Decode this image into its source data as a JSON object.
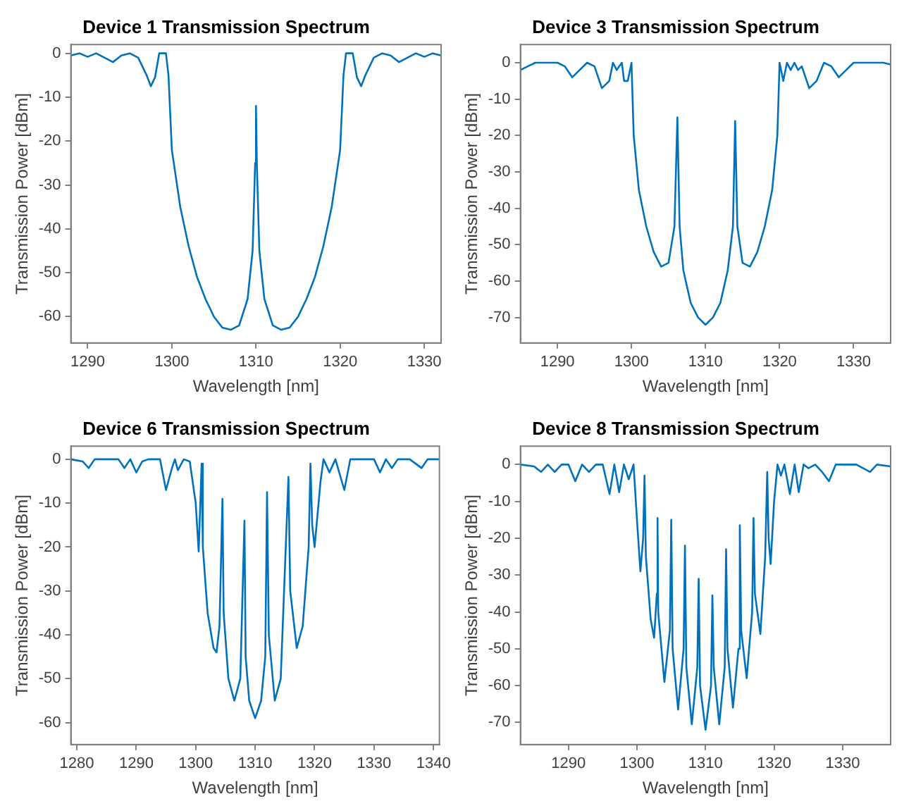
{
  "chart_data": [
    {
      "type": "line",
      "title": "Device 1 Transmission Spectrum",
      "xlabel": "Wavelength [nm]",
      "ylabel": "Transmission Power [dBm]",
      "color": "#0072bd",
      "marker": "none",
      "xlim": [
        1288,
        1332
      ],
      "xticks": [
        1290,
        1300,
        1310,
        1320,
        1330
      ],
      "ylim": [
        -66,
        2
      ],
      "yticks": [
        -60,
        -50,
        -40,
        -30,
        -20,
        -10,
        0
      ],
      "x": [
        1288,
        1289,
        1290,
        1291,
        1292,
        1293,
        1294,
        1295,
        1296,
        1297,
        1297.5,
        1298,
        1298.5,
        1299.3,
        1299.6,
        1300,
        1301,
        1302,
        1303,
        1304,
        1305,
        1306,
        1307,
        1308,
        1309,
        1309.6,
        1309.9,
        1310,
        1310.1,
        1310.4,
        1311,
        1312,
        1313,
        1314,
        1315,
        1316,
        1317,
        1318,
        1319,
        1320,
        1320.4,
        1320.7,
        1321.5,
        1322,
        1322.5,
        1323,
        1324,
        1325,
        1326,
        1327,
        1328,
        1329,
        1330,
        1331,
        1332
      ],
      "values": [
        -0.5,
        0,
        -0.8,
        0,
        -1,
        -2,
        -0.5,
        0,
        -1,
        -5,
        -7.5,
        -5.5,
        0,
        0,
        -5,
        -22,
        -35,
        -44,
        -51,
        -56,
        -60,
        -62.5,
        -63,
        -62,
        -56,
        -45,
        -25,
        -12,
        -25,
        -45,
        -56,
        -62,
        -63,
        -62.5,
        -60,
        -56,
        -51,
        -44,
        -35,
        -22,
        -5,
        0,
        0,
        -5.5,
        -7.5,
        -5,
        -1,
        0,
        -0.5,
        -2,
        -1,
        0,
        -0.8,
        0,
        -0.5
      ]
    },
    {
      "type": "line",
      "title": "Device 3 Transmission Spectrum",
      "xlabel": "Wavelength [nm]",
      "ylabel": "Transmission Power [dBm]",
      "color": "#0072bd",
      "marker": "none",
      "xlim": [
        1285,
        1335
      ],
      "xticks": [
        1290,
        1300,
        1310,
        1320,
        1330
      ],
      "ylim": [
        -77,
        5
      ],
      "yticks": [
        -70,
        -60,
        -50,
        -40,
        -30,
        -20,
        -10,
        0
      ],
      "x": [
        1285,
        1286,
        1287,
        1288,
        1290,
        1291,
        1292,
        1293,
        1294,
        1295,
        1296,
        1297,
        1297.5,
        1298,
        1298.7,
        1299,
        1299.5,
        1300,
        1300.3,
        1301,
        1302,
        1303,
        1304,
        1305,
        1305.8,
        1306.2,
        1306.5,
        1307,
        1308,
        1309,
        1310,
        1311,
        1312,
        1313,
        1313.7,
        1314,
        1314.3,
        1315,
        1316,
        1317,
        1318,
        1319,
        1319.7,
        1320,
        1320.5,
        1321,
        1321.5,
        1322,
        1322.5,
        1323,
        1324,
        1325,
        1326,
        1327,
        1328,
        1329,
        1330,
        1332,
        1334,
        1335
      ],
      "values": [
        -2,
        -1,
        0,
        0,
        0,
        -1,
        -4,
        -2,
        0,
        -1,
        -7,
        -5,
        0,
        -2,
        0,
        -5,
        -5,
        0,
        -20,
        -35,
        -45,
        -52,
        -56,
        -55,
        -45,
        -15,
        -45,
        -57,
        -66,
        -70,
        -72,
        -70,
        -66,
        -57,
        -45,
        -16,
        -45,
        -55,
        -56,
        -52,
        -45,
        -35,
        -20,
        0,
        -5,
        0,
        -2,
        0,
        -2,
        -1,
        -7,
        -5,
        0,
        -1,
        -4,
        -2,
        0,
        0,
        0,
        -0.5
      ]
    },
    {
      "type": "line",
      "title": "Device 6 Transmission Spectrum",
      "xlabel": "Wavelength [nm]",
      "ylabel": "Transmission Power [dBm]",
      "color": "#0072bd",
      "marker": "none",
      "xlim": [
        1279,
        1341
      ],
      "xticks": [
        1280,
        1290,
        1300,
        1310,
        1320,
        1330,
        1340
      ],
      "ylim": [
        -65,
        3
      ],
      "yticks": [
        -60,
        -50,
        -40,
        -30,
        -20,
        -10,
        0
      ],
      "x": [
        1279,
        1281,
        1282,
        1283,
        1285,
        1287,
        1288,
        1289,
        1290,
        1291,
        1292,
        1294,
        1295,
        1296,
        1296.5,
        1297,
        1298,
        1299,
        1300,
        1300.5,
        1301,
        1301.2,
        1302,
        1303,
        1303.5,
        1304,
        1304.5,
        1304.7,
        1305.5,
        1306.5,
        1307.5,
        1308.2,
        1308.4,
        1309,
        1310,
        1311,
        1311.7,
        1312,
        1312.3,
        1313.3,
        1314.3,
        1315.6,
        1315.9,
        1317,
        1318,
        1319,
        1319.3,
        1319.6,
        1320,
        1321,
        1321.5,
        1322.5,
        1323.5,
        1325,
        1326,
        1328,
        1330,
        1331,
        1332,
        1333,
        1334,
        1336,
        1338,
        1339,
        1341
      ],
      "values": [
        0,
        -0.5,
        -2,
        0,
        0,
        0,
        -2,
        0,
        -3,
        -0.5,
        0,
        0,
        -7,
        -2,
        0,
        -2.5,
        0,
        -0.5,
        -10,
        -21,
        -1,
        -20,
        -35,
        -43,
        -44,
        -38,
        -9,
        -35,
        -50,
        -55,
        -50,
        -14,
        -45,
        -55,
        -59,
        -55,
        -45,
        -7.5,
        -40,
        -55,
        -50,
        -4,
        -30,
        -43,
        -38,
        -20,
        -1,
        -15,
        -20,
        -5,
        0,
        -3,
        0,
        -7,
        0,
        0,
        0,
        -3,
        0,
        -2,
        0,
        0,
        -2,
        0,
        0
      ]
    },
    {
      "type": "line",
      "title": "Device 8 Transmission Spectrum",
      "xlabel": "Wavelength [nm]",
      "ylabel": "Transmission Power [dBm]",
      "color": "#0072bd",
      "marker": "none",
      "xlim": [
        1283,
        1337
      ],
      "xticks": [
        1290,
        1300,
        1310,
        1320,
        1330
      ],
      "ylim": [
        -76,
        5
      ],
      "yticks": [
        -70,
        -60,
        -50,
        -40,
        -30,
        -20,
        -10,
        0
      ],
      "x": [
        1283,
        1285,
        1286,
        1287,
        1288,
        1289,
        1290,
        1291,
        1292,
        1293,
        1294,
        1295,
        1296,
        1296.7,
        1297.4,
        1298.1,
        1298.8,
        1299.5,
        1300,
        1300.5,
        1300.9,
        1301.1,
        1301.3,
        1302,
        1302.5,
        1302.9,
        1303,
        1303.1,
        1304,
        1304.8,
        1305,
        1305.2,
        1306,
        1306.8,
        1307,
        1307.2,
        1308,
        1308.8,
        1309,
        1309.2,
        1310,
        1310.8,
        1311,
        1311.2,
        1312,
        1312.8,
        1313,
        1313.2,
        1314,
        1314.8,
        1315,
        1315.2,
        1316,
        1316.8,
        1317,
        1317.2,
        1318,
        1318.7,
        1319,
        1319.2,
        1319.5,
        1320,
        1320.5,
        1321,
        1321.5,
        1322.3,
        1323,
        1323.6,
        1324.3,
        1325,
        1326,
        1327,
        1328,
        1329,
        1330,
        1332,
        1334,
        1335,
        1337
      ],
      "values": [
        0,
        -0.5,
        -2,
        0,
        -2,
        0,
        0,
        -4.5,
        0,
        -2,
        0,
        0,
        -8,
        0,
        -7.5,
        0,
        -4,
        0,
        -15,
        -29,
        -20,
        -3,
        -25,
        -42,
        -47,
        -35,
        -14.5,
        -40,
        -59,
        -45,
        -15,
        -50,
        -66.5,
        -50,
        -22,
        -55,
        -70.5,
        -55,
        -31,
        -60,
        -72,
        -60,
        -35.5,
        -55,
        -70.5,
        -55,
        -23,
        -50,
        -66,
        -50,
        -16.5,
        -45,
        -58,
        -40,
        -14.5,
        -35,
        -46,
        -25,
        -2,
        -20,
        -27,
        -10,
        0,
        -3,
        0,
        -8,
        0,
        -7.5,
        0,
        -1,
        0,
        -2,
        -4.5,
        0,
        0,
        0,
        -2,
        0,
        -0.5
      ]
    }
  ]
}
